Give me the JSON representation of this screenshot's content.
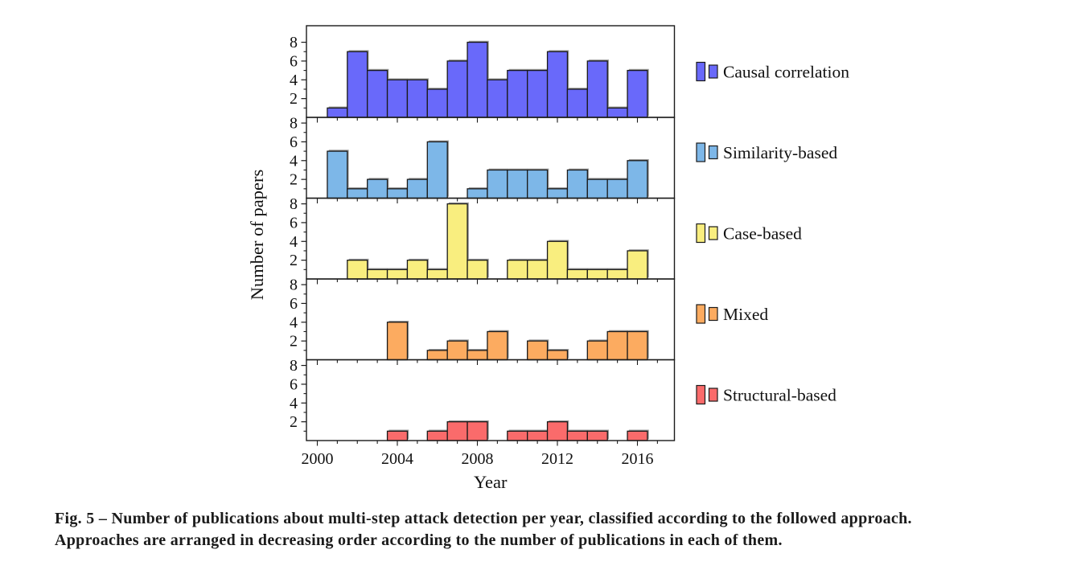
{
  "caption": {
    "line1": "Fig. 5 – Number of publications about multi-step attack detection per year, classified according to the followed approach.",
    "line2": "Approaches are arranged in decreasing order according to the number of publications in each of them."
  },
  "chart_data": {
    "type": "bar",
    "title": "",
    "xlabel": "Year",
    "ylabel": "Number of papers",
    "x": [
      2001,
      2002,
      2003,
      2004,
      2005,
      2006,
      2007,
      2008,
      2009,
      2010,
      2011,
      2012,
      2013,
      2014,
      2015,
      2016
    ],
    "xlim": [
      1999.5,
      2017.8
    ],
    "x_major_ticks": [
      2000,
      2004,
      2008,
      2012,
      2016
    ],
    "x_tick_labels": [
      "2000",
      "2004",
      "2008",
      "2012",
      "2016"
    ],
    "ylim": [
      0,
      8.6
    ],
    "y_major_ticks": [
      2,
      4,
      6,
      8
    ],
    "y_minor_ticks": [
      1,
      3,
      5,
      7
    ],
    "grid": false,
    "legend_position": "right-of-panels",
    "axis_color": "#1a1a1a",
    "bar_border_color": "#1a1a1a",
    "bar_shadow_color": "#9a9a9a",
    "series": [
      {
        "name": "Causal correlation",
        "color": "#6969fa",
        "values": [
          1,
          7,
          5,
          4,
          4,
          3,
          6,
          8,
          4,
          5,
          5,
          7,
          3,
          6,
          1,
          5
        ]
      },
      {
        "name": "Similarity-based",
        "color": "#7db7e8",
        "values": [
          5,
          1,
          2,
          1,
          2,
          6,
          0,
          1,
          3,
          3,
          3,
          1,
          3,
          2,
          2,
          4
        ]
      },
      {
        "name": "Case-based",
        "color": "#f9ee7f",
        "values": [
          0,
          2,
          1,
          1,
          2,
          1,
          8,
          2,
          0,
          2,
          2,
          4,
          1,
          1,
          1,
          3
        ]
      },
      {
        "name": "Mixed",
        "color": "#fcab60",
        "values": [
          0,
          0,
          0,
          4,
          0,
          1,
          2,
          1,
          3,
          0,
          2,
          1,
          0,
          2,
          3,
          3
        ]
      },
      {
        "name": "Structural-based",
        "color": "#fa6b6b",
        "values": [
          0,
          0,
          0,
          1,
          0,
          1,
          2,
          2,
          0,
          1,
          1,
          2,
          1,
          1,
          0,
          1
        ]
      }
    ]
  }
}
